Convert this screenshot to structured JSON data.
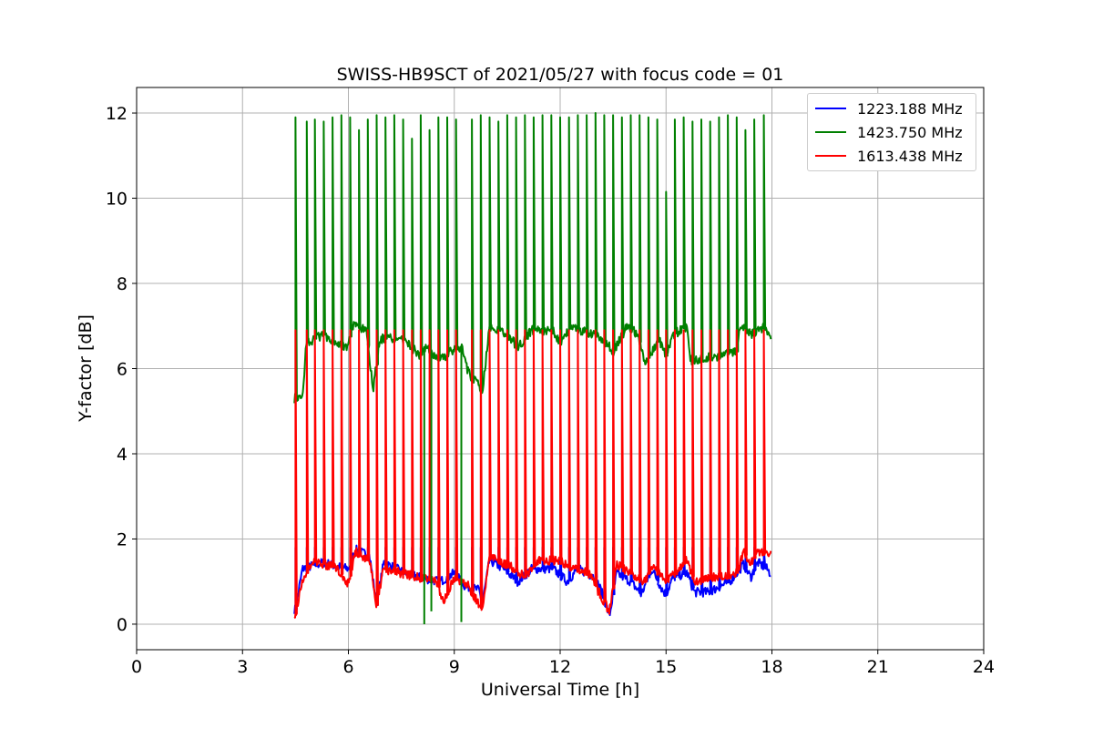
{
  "chart_data": {
    "type": "line",
    "title": "SWISS-HB9SCT of 2021/05/27 with focus code = 01",
    "xlabel": "Universal Time [h]",
    "ylabel": "Y-factor [dB]",
    "xlim": [
      0,
      24
    ],
    "ylim": [
      -0.6,
      12.6
    ],
    "xticks": [
      0,
      3,
      6,
      9,
      12,
      15,
      18,
      21,
      24
    ],
    "yticks": [
      0,
      2,
      4,
      6,
      8,
      10,
      12
    ],
    "grid": true,
    "legend_position": "top-right",
    "data_range_hours": [
      4.47,
      17.97
    ],
    "series": [
      {
        "name": "1223.188 MHz",
        "color": "#0000ff",
        "baseline": [
          [
            4.5,
            0.35
          ],
          [
            4.7,
            1.3
          ],
          [
            5.3,
            1.45
          ],
          [
            5.7,
            1.35
          ],
          [
            6.0,
            1.3
          ],
          [
            6.2,
            1.75
          ],
          [
            6.6,
            1.6
          ],
          [
            6.8,
            0.45
          ],
          [
            7.0,
            1.45
          ],
          [
            7.6,
            1.2
          ],
          [
            8.0,
            1.1
          ],
          [
            8.6,
            1.0
          ],
          [
            9.0,
            1.2
          ],
          [
            9.3,
            0.9
          ],
          [
            9.7,
            0.8
          ],
          [
            9.8,
            0.5
          ],
          [
            10.0,
            1.5
          ],
          [
            10.4,
            1.3
          ],
          [
            10.8,
            1.0
          ],
          [
            11.2,
            1.3
          ],
          [
            11.8,
            1.3
          ],
          [
            12.2,
            1.0
          ],
          [
            12.5,
            1.3
          ],
          [
            13.0,
            1.1
          ],
          [
            13.2,
            0.7
          ],
          [
            13.4,
            0.2
          ],
          [
            13.6,
            1.2
          ],
          [
            14.0,
            1.0
          ],
          [
            14.3,
            0.7
          ],
          [
            14.6,
            1.3
          ],
          [
            14.9,
            0.8
          ],
          [
            15.0,
            0.7
          ],
          [
            15.2,
            1.1
          ],
          [
            15.6,
            1.2
          ],
          [
            15.8,
            0.75
          ],
          [
            16.2,
            0.75
          ],
          [
            16.8,
            1.0
          ],
          [
            17.2,
            1.4
          ],
          [
            17.4,
            1.1
          ],
          [
            17.6,
            1.45
          ],
          [
            17.85,
            1.3
          ],
          [
            17.95,
            1.2
          ]
        ],
        "spike_height": 1.8
      },
      {
        "name": "1423.750 MHz",
        "color": "#008000",
        "baseline": [
          [
            4.5,
            5.3
          ],
          [
            4.7,
            5.3
          ],
          [
            4.8,
            6.6
          ],
          [
            5.3,
            6.8
          ],
          [
            5.7,
            6.6
          ],
          [
            6.0,
            6.5
          ],
          [
            6.1,
            7.0
          ],
          [
            6.5,
            6.9
          ],
          [
            6.7,
            5.5
          ],
          [
            6.9,
            6.7
          ],
          [
            7.5,
            6.7
          ],
          [
            7.7,
            6.6
          ],
          [
            8.0,
            6.3
          ],
          [
            8.2,
            6.5
          ],
          [
            8.6,
            6.2
          ],
          [
            8.9,
            6.4
          ],
          [
            9.2,
            6.5
          ],
          [
            9.4,
            5.9
          ],
          [
            9.8,
            5.5
          ],
          [
            10.0,
            7.0
          ],
          [
            10.5,
            6.8
          ],
          [
            10.8,
            6.5
          ],
          [
            11.2,
            6.9
          ],
          [
            11.8,
            6.9
          ],
          [
            12.0,
            6.6
          ],
          [
            12.3,
            7.0
          ],
          [
            12.9,
            6.8
          ],
          [
            13.2,
            6.7
          ],
          [
            13.5,
            6.4
          ],
          [
            13.9,
            7.0
          ],
          [
            14.2,
            6.8
          ],
          [
            14.4,
            6.1
          ],
          [
            14.8,
            6.7
          ],
          [
            15.0,
            6.3
          ],
          [
            15.2,
            6.8
          ],
          [
            15.6,
            7.0
          ],
          [
            15.7,
            6.2
          ],
          [
            16.5,
            6.3
          ],
          [
            17.0,
            6.4
          ],
          [
            17.1,
            7.0
          ],
          [
            17.4,
            6.8
          ],
          [
            17.8,
            7.0
          ],
          [
            17.95,
            6.8
          ]
        ],
        "spike_peaks": [
          11.9,
          11.8,
          11.85,
          11.8,
          11.9,
          11.95,
          11.9,
          11.6,
          11.85,
          11.95,
          11.9,
          11.95,
          11.85,
          11.4,
          11.95,
          11.6,
          11.9,
          11.9,
          11.85,
          11.85,
          11.95,
          11.9,
          11.8,
          11.95,
          11.9,
          11.95,
          11.9,
          11.95,
          11.95,
          11.9,
          11.9,
          11.95,
          11.95,
          12.0,
          11.95,
          11.95,
          11.9,
          11.95,
          11.95,
          11.9,
          11.85,
          10.15,
          11.85
        ]
      },
      {
        "name": "1613.438 MHz",
        "color": "#ff0000",
        "baseline": [
          [
            4.5,
            0.25
          ],
          [
            4.7,
            1.0
          ],
          [
            5.0,
            1.5
          ],
          [
            5.7,
            1.3
          ],
          [
            6.0,
            0.95
          ],
          [
            6.2,
            1.7
          ],
          [
            6.6,
            1.5
          ],
          [
            6.8,
            0.45
          ],
          [
            7.0,
            1.3
          ],
          [
            7.5,
            1.2
          ],
          [
            8.0,
            1.1
          ],
          [
            8.5,
            1.0
          ],
          [
            8.7,
            0.5
          ],
          [
            9.0,
            1.1
          ],
          [
            9.4,
            0.9
          ],
          [
            9.8,
            0.3
          ],
          [
            10.0,
            1.6
          ],
          [
            10.5,
            1.4
          ],
          [
            11.0,
            1.1
          ],
          [
            11.4,
            1.5
          ],
          [
            12.0,
            1.5
          ],
          [
            12.4,
            1.3
          ],
          [
            12.8,
            1.2
          ],
          [
            13.2,
            0.6
          ],
          [
            13.4,
            0.3
          ],
          [
            13.6,
            1.4
          ],
          [
            14.0,
            1.2
          ],
          [
            14.4,
            1.0
          ],
          [
            14.6,
            1.4
          ],
          [
            15.0,
            1.0
          ],
          [
            15.6,
            1.5
          ],
          [
            15.8,
            1.0
          ],
          [
            16.4,
            1.1
          ],
          [
            17.0,
            1.2
          ],
          [
            17.2,
            1.7
          ],
          [
            17.4,
            1.4
          ],
          [
            17.6,
            1.7
          ],
          [
            17.95,
            1.65
          ]
        ],
        "spike_height": 6.9
      }
    ],
    "spike_times": [
      4.5,
      4.82,
      5.05,
      5.3,
      5.55,
      5.8,
      6.05,
      6.3,
      6.55,
      6.8,
      7.05,
      7.3,
      7.55,
      7.8,
      8.05,
      8.3,
      8.55,
      8.8,
      9.05,
      9.5,
      9.75,
      10.0,
      10.25,
      10.5,
      10.75,
      11.0,
      11.25,
      11.5,
      11.75,
      12.0,
      12.25,
      12.5,
      12.75,
      13.0,
      13.25,
      13.5,
      13.75,
      14.0,
      14.25,
      14.5,
      14.75,
      15.0,
      15.25,
      15.5,
      15.75,
      16.0,
      16.25,
      16.5,
      16.75,
      17.0,
      17.25,
      17.5,
      17.77
    ],
    "annotations": []
  }
}
